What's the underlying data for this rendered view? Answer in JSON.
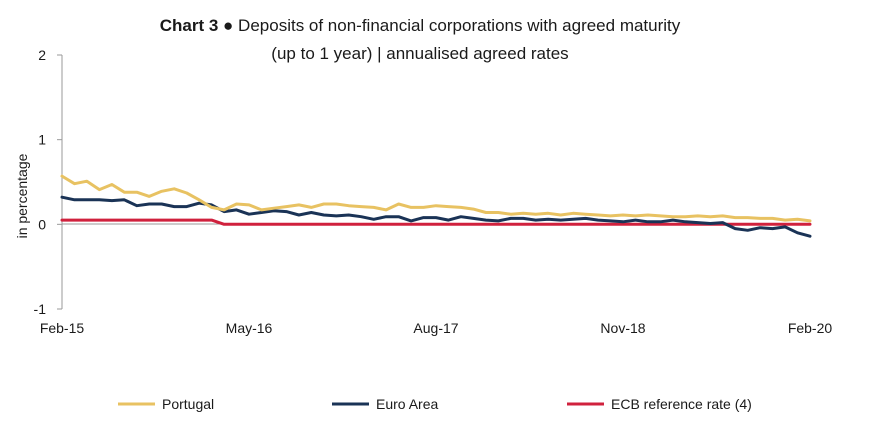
{
  "chart_data": {
    "type": "line",
    "title_bold": "Chart 3",
    "title_separator": "●",
    "title_line1": "Deposits of non-financial corporations with agreed maturity",
    "title_line2": "(up to 1 year) | annualised agreed rates",
    "ylabel": "in percentage",
    "ylim": [
      -1,
      2
    ],
    "yticks": [
      -1,
      0,
      1,
      2
    ],
    "ytick_labels": [
      "-1",
      "0",
      "1",
      "2"
    ],
    "x_start": "2015-02",
    "x_end": "2020-02",
    "xticks": [
      {
        "date": "2015-02",
        "label": "Feb-15"
      },
      {
        "date": "2016-05",
        "label": "May-16"
      },
      {
        "date": "2017-08",
        "label": "Aug-17"
      },
      {
        "date": "2018-11",
        "label": "Nov-18"
      },
      {
        "date": "2020-02",
        "label": "Feb-20"
      }
    ],
    "grid": false,
    "legend_position": "bottom",
    "series": [
      {
        "name": "Portugal",
        "color": "#e8c262",
        "values": [
          0.57,
          0.48,
          0.51,
          0.41,
          0.47,
          0.38,
          0.38,
          0.33,
          0.39,
          0.42,
          0.37,
          0.29,
          0.2,
          0.17,
          0.24,
          0.23,
          0.17,
          0.19,
          0.21,
          0.23,
          0.2,
          0.24,
          0.24,
          0.22,
          0.21,
          0.2,
          0.17,
          0.24,
          0.2,
          0.2,
          0.22,
          0.21,
          0.2,
          0.18,
          0.14,
          0.14,
          0.12,
          0.13,
          0.12,
          0.13,
          0.11,
          0.13,
          0.12,
          0.11,
          0.1,
          0.11,
          0.1,
          0.11,
          0.1,
          0.09,
          0.09,
          0.1,
          0.09,
          0.1,
          0.08,
          0.08,
          0.07,
          0.07,
          0.05,
          0.06,
          0.04
        ]
      },
      {
        "name": "Euro Area",
        "color": "#1a3356",
        "values": [
          0.32,
          0.29,
          0.29,
          0.29,
          0.28,
          0.29,
          0.22,
          0.24,
          0.24,
          0.21,
          0.21,
          0.25,
          0.23,
          0.15,
          0.17,
          0.12,
          0.14,
          0.16,
          0.15,
          0.11,
          0.14,
          0.11,
          0.1,
          0.11,
          0.09,
          0.06,
          0.09,
          0.09,
          0.04,
          0.08,
          0.08,
          0.05,
          0.09,
          0.07,
          0.05,
          0.04,
          0.07,
          0.07,
          0.05,
          0.06,
          0.05,
          0.06,
          0.07,
          0.05,
          0.04,
          0.03,
          0.05,
          0.03,
          0.03,
          0.05,
          0.03,
          0.02,
          0.01,
          0.02,
          -0.05,
          -0.07,
          -0.04,
          -0.05,
          -0.03,
          -0.1,
          -0.14
        ]
      },
      {
        "name": "ECB reference rate (4)",
        "color": "#d0213d",
        "values": [
          0.05,
          0.05,
          0.05,
          0.05,
          0.05,
          0.05,
          0.05,
          0.05,
          0.05,
          0.05,
          0.05,
          0.05,
          0.05,
          0.0,
          0.0,
          0.0,
          0.0,
          0.0,
          0.0,
          0.0,
          0.0,
          0.0,
          0.0,
          0.0,
          0.0,
          0.0,
          0.0,
          0.0,
          0.0,
          0.0,
          0.0,
          0.0,
          0.0,
          0.0,
          0.0,
          0.0,
          0.0,
          0.0,
          0.0,
          0.0,
          0.0,
          0.0,
          0.0,
          0.0,
          0.0,
          0.0,
          0.0,
          0.0,
          0.0,
          0.0,
          0.0,
          0.0,
          0.0,
          0.0,
          0.0,
          0.0,
          0.0,
          0.0,
          0.0,
          0.0,
          0.0
        ]
      }
    ]
  }
}
